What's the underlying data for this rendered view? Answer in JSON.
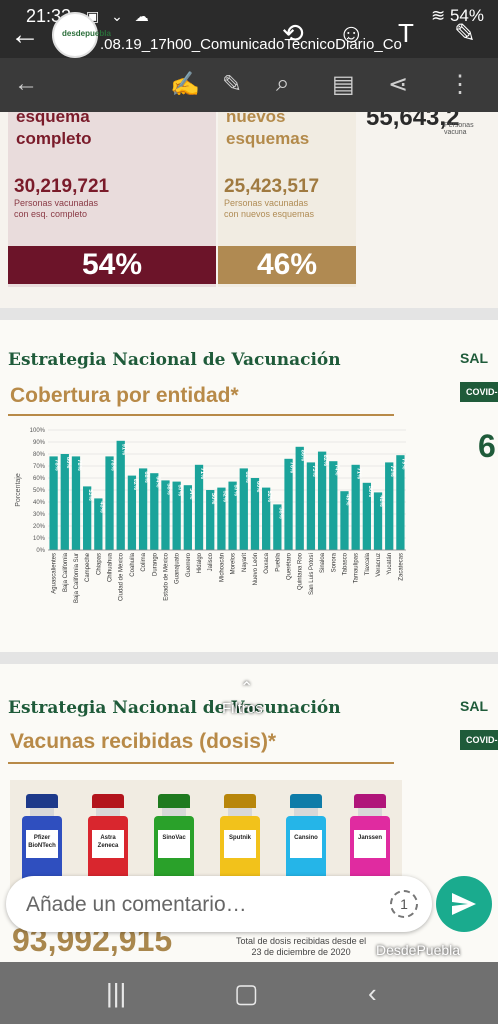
{
  "status": {
    "time": "21:32",
    "battery": "54%"
  },
  "header": {
    "app_logo_text": "desdepuebla",
    "doc_title": ".08.19_17h00_ComunicadoTecnicoDiario_Co"
  },
  "slide1": {
    "left_head": "esquema\ncompleto",
    "right_head": "nuevos\nesquemas",
    "left_number": "30,219,721",
    "left_sub": "Personas vacunadas\ncon esq. completo",
    "right_number": "25,423,517",
    "right_sub": "Personas vacunadas\ncon nuevos esquemas",
    "left_pct": "54%",
    "right_pct": "46%",
    "right_partial_number": "55,643,2",
    "right_partial_sub": "Personas vacuna"
  },
  "slide2": {
    "title": "Estrategia Nacional de Vacunación",
    "subtitle": "Cobertura por entidad*",
    "salud": "SAL",
    "covid_tag": "COVID-",
    "big_right": "6"
  },
  "chart_data": {
    "type": "bar",
    "ylabel": "Porcentaje",
    "ylim": [
      0,
      100
    ],
    "yticks": [
      "0%",
      "10%",
      "20%",
      "30%",
      "40%",
      "50%",
      "60%",
      "70%",
      "80%",
      "90%",
      "100%"
    ],
    "categories": [
      "Aguascalientes",
      "Baja California",
      "Baja California Sur",
      "Campeche",
      "Chiapas",
      "Chihuahua",
      "Ciudad de México",
      "Coahuila",
      "Colima",
      "Durango",
      "Estado de México",
      "Guanajuato",
      "Guerrero",
      "Hidalgo",
      "Jalisco",
      "Michoacán",
      "Morelos",
      "Nayarit",
      "Nuevo León",
      "Oaxaca",
      "Puebla",
      "Querétaro",
      "Quintana Roo",
      "San Luis Potosí",
      "Sinaloa",
      "Sonora",
      "Tabasco",
      "Tamaulipas",
      "Tlaxcala",
      "Veracruz",
      "Yucatán",
      "Zacatecas"
    ],
    "values": [
      78,
      80,
      78,
      53,
      43,
      78,
      91,
      62,
      68,
      64,
      58,
      57,
      54,
      71,
      50,
      52,
      57,
      68,
      60,
      52,
      38,
      76,
      86,
      73,
      82,
      74,
      49,
      71,
      56,
      48,
      73,
      79
    ],
    "labels": [
      "78%",
      "80%",
      "78%",
      "53%",
      "43%",
      "78%",
      "91%",
      "62%",
      "68%",
      "64%",
      "58%",
      "57%",
      "54%",
      "71%",
      "50%",
      "52%",
      "57%",
      "68%",
      "60%",
      "52%",
      "38%",
      "76%",
      "86%",
      "73%",
      "82%",
      "74%",
      "49%",
      "71%",
      "56%",
      "48%",
      "73%",
      "79%"
    ],
    "bar_color": "#1aa39a",
    "grid": true
  },
  "slide3": {
    "title": "Estrategia Nacional de Vacunación",
    "subtitle": "Vacunas recibidas (dosis)*",
    "salud": "SAL",
    "covid_tag": "COVID-",
    "vials": [
      {
        "label": "Pfizer\nBioNTech",
        "cap": "#1e3a8a",
        "body": "#2f4fbf"
      },
      {
        "label": "Astra\nZeneca",
        "cap": "#b3141c",
        "body": "#d9262e"
      },
      {
        "label": "SinoVac",
        "cap": "#1f7a1f",
        "body": "#2aa12a"
      },
      {
        "label": "Sputnik",
        "cap": "#b8860b",
        "body": "#f2c21b"
      },
      {
        "label": "Cansino",
        "cap": "#0f7ca8",
        "body": "#25b5e8"
      },
      {
        "label": "Janssen",
        "cap": "#b0157a",
        "body": "#e02ba0"
      }
    ],
    "total": "93,992,915",
    "total_sub": "Total de dosis recibidas desde el\n23 de diciembre de 2020"
  },
  "overlay": {
    "filtros": "Filtros",
    "watermark": "DesdePuebla"
  },
  "comment": {
    "placeholder": "Añade un comentario…"
  }
}
